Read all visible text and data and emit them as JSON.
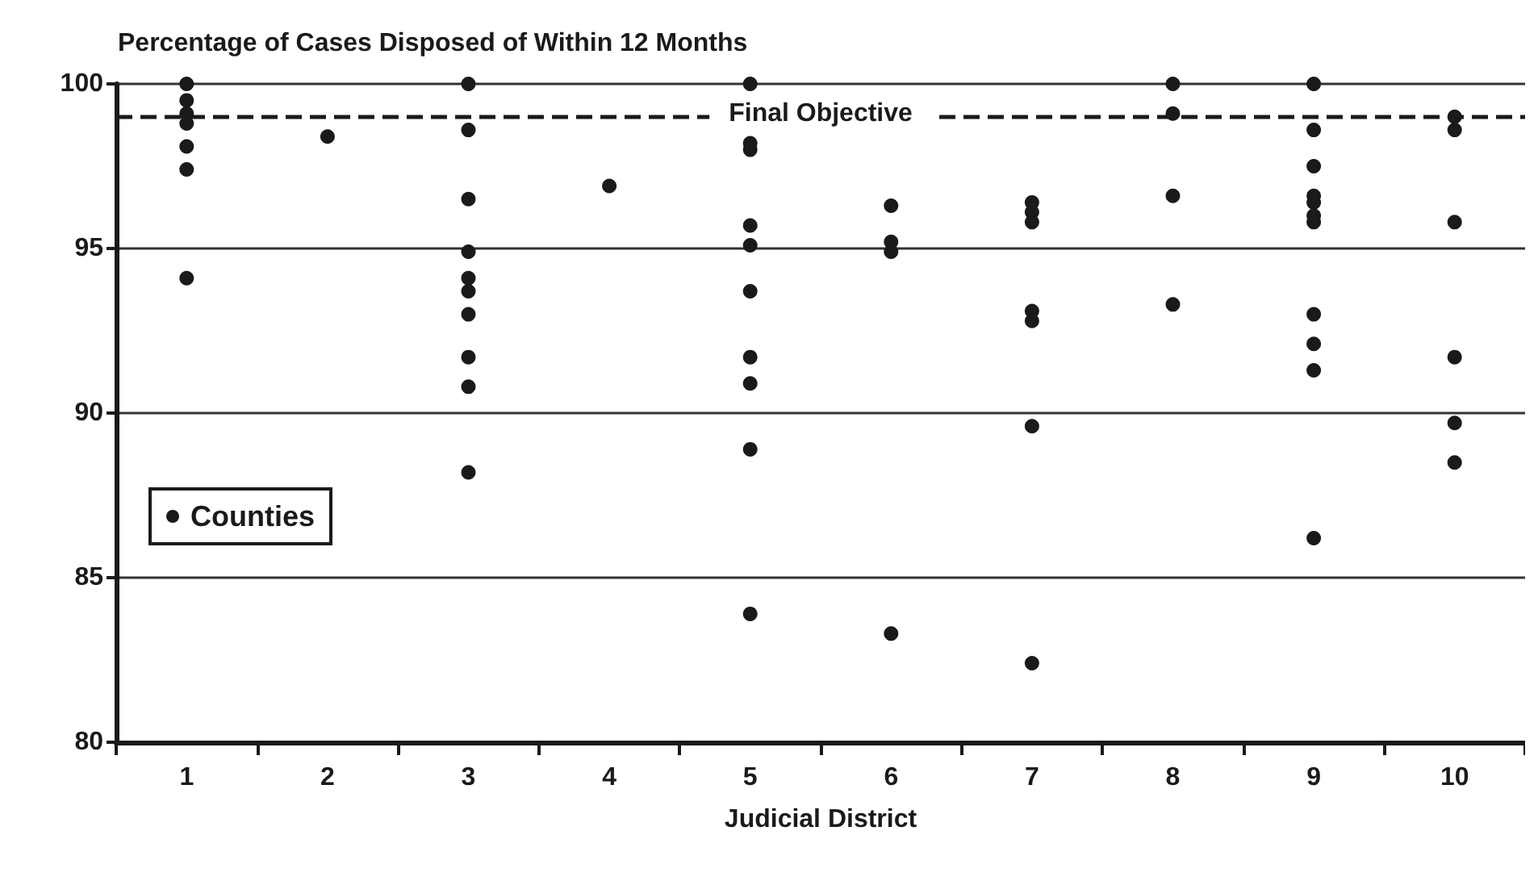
{
  "chart_data": {
    "type": "scatter",
    "title": "Percentage of Cases Disposed of Within 12 Months",
    "xlabel": "Judicial District",
    "categories": [
      "1",
      "2",
      "3",
      "4",
      "5",
      "6",
      "7",
      "8",
      "9",
      "10"
    ],
    "series": [
      {
        "name": "Counties",
        "color": "#1a1a1a",
        "x": [
          "1",
          "1",
          "1",
          "1",
          "1",
          "1",
          "1",
          "2",
          "3",
          "3",
          "3",
          "3",
          "3",
          "3",
          "3",
          "3",
          "3",
          "3",
          "4",
          "5",
          "5",
          "5",
          "5",
          "5",
          "5",
          "5",
          "5",
          "5",
          "5",
          "6",
          "6",
          "6",
          "6",
          "7",
          "7",
          "7",
          "7",
          "7",
          "7",
          "7",
          "8",
          "8",
          "8",
          "8",
          "9",
          "9",
          "9",
          "9",
          "9",
          "9",
          "9",
          "9",
          "9",
          "9",
          "9",
          "10",
          "10",
          "10",
          "10",
          "10",
          "10"
        ],
        "values": [
          100,
          99.5,
          99.1,
          98.8,
          98.1,
          97.4,
          94.1,
          98.4,
          100,
          98.6,
          96.5,
          94.9,
          94.1,
          93.7,
          93.0,
          91.7,
          90.8,
          88.2,
          96.9,
          100,
          98.2,
          98.0,
          95.7,
          95.1,
          93.7,
          91.7,
          90.9,
          88.9,
          83.9,
          96.3,
          95.2,
          94.9,
          83.3,
          96.4,
          96.1,
          95.8,
          93.1,
          92.8,
          89.6,
          82.4,
          100,
          99.1,
          96.6,
          93.3,
          100,
          98.6,
          97.5,
          96.6,
          96.4,
          96.0,
          95.8,
          93.0,
          92.1,
          91.3,
          86.2,
          99.0,
          98.6,
          95.8,
          91.7,
          89.7,
          88.5
        ]
      }
    ],
    "ylim": [
      80,
      100
    ],
    "yticks": [
      80,
      85,
      90,
      95,
      100
    ],
    "grid": "y",
    "legend": "left",
    "marker": "circle",
    "ref_lines": [
      {
        "axis": "y",
        "value": 99,
        "label": "Final Objective",
        "line_style": "dashed",
        "color": "#1a1a1a"
      }
    ]
  }
}
